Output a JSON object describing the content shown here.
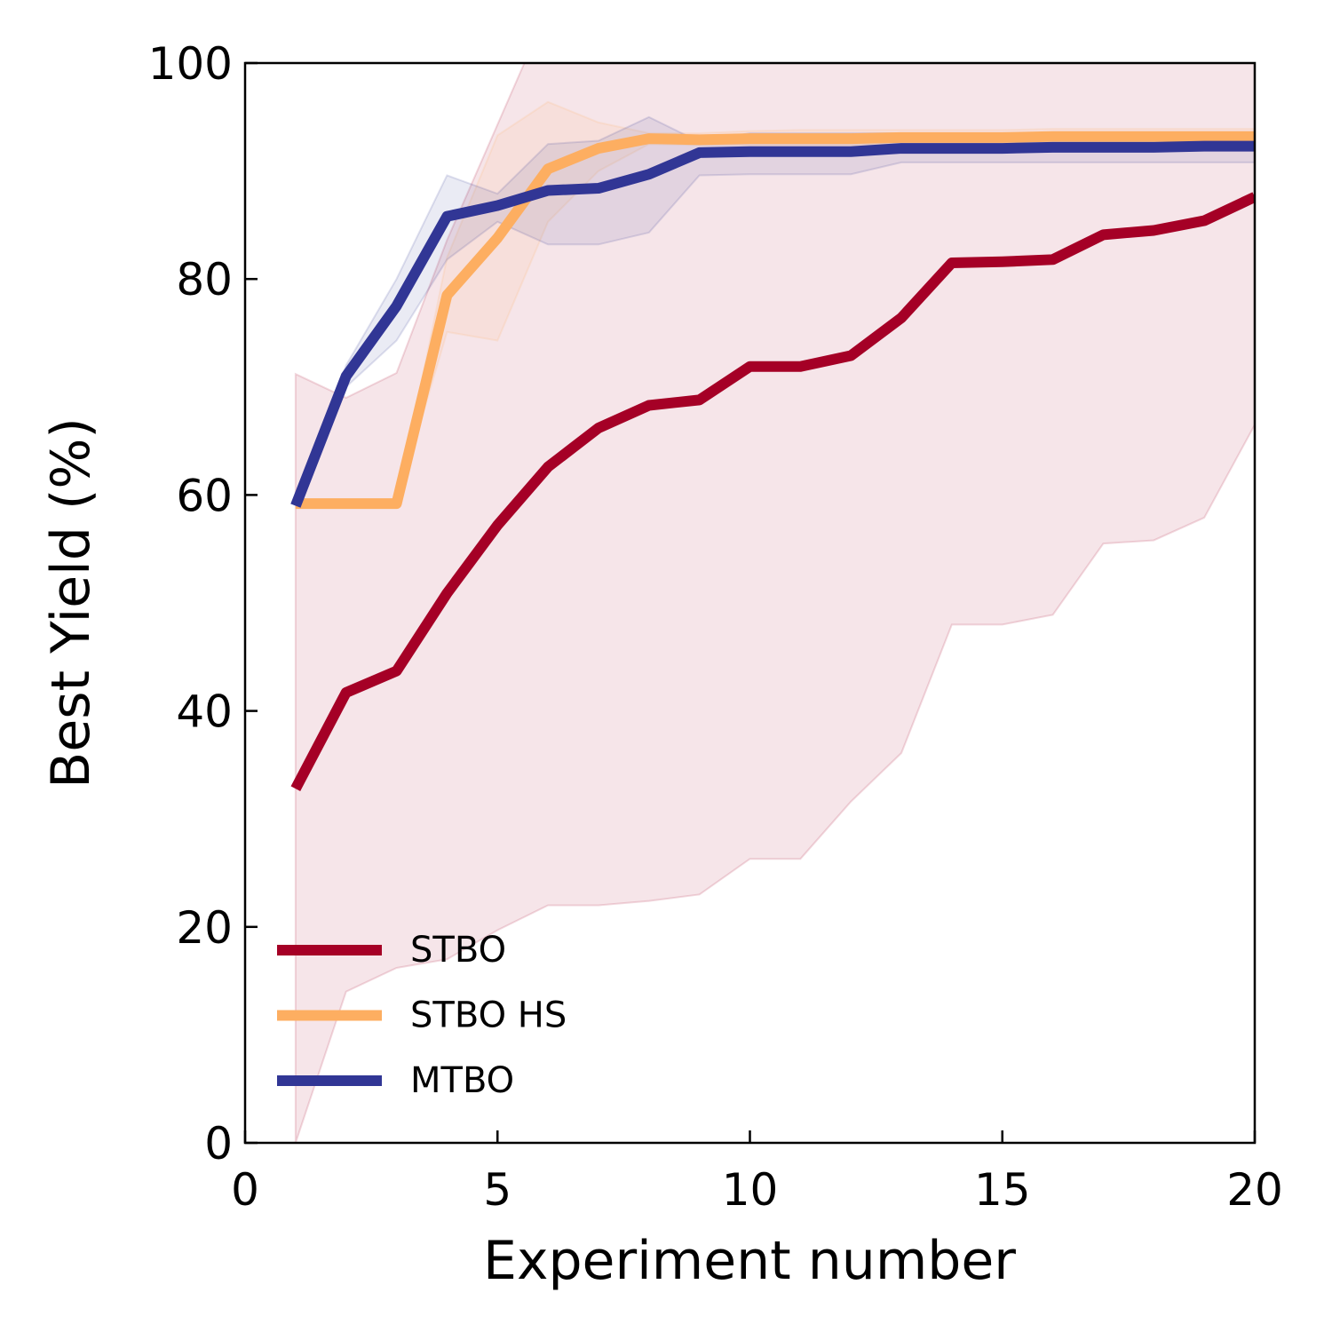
{
  "chart_data": {
    "type": "line",
    "xlabel": "Experiment number",
    "ylabel": "Best Yield (%)",
    "xlim": [
      0,
      20
    ],
    "ylim": [
      0,
      100
    ],
    "xticks": [
      0,
      5,
      10,
      15,
      20
    ],
    "yticks": [
      0,
      20,
      40,
      60,
      80,
      100
    ],
    "legend": "lower left",
    "x": [
      1,
      2,
      3,
      4,
      5,
      6,
      7,
      8,
      9,
      10,
      11,
      12,
      13,
      14,
      15,
      16,
      17,
      18,
      19,
      20
    ],
    "series": [
      {
        "name": "STBO",
        "color": "#a50026",
        "values": [
          32.8,
          41.7,
          43.7,
          50.9,
          57.2,
          62.6,
          66.2,
          68.3,
          68.8,
          71.9,
          71.9,
          72.9,
          76.4,
          81.5,
          81.6,
          81.8,
          84.1,
          84.5,
          85.4,
          87.6
        ],
        "upper": [
          71.2,
          69,
          71.3,
          83.6,
          94.3,
          105,
          110,
          110,
          110,
          110,
          110,
          110,
          110,
          110,
          110,
          110,
          110,
          110,
          110,
          110
        ],
        "lower": [
          0,
          14,
          16.2,
          17,
          19.7,
          22,
          22,
          22.4,
          23,
          26.3,
          26.3,
          31.6,
          36.1,
          48,
          48,
          48.9,
          55.5,
          55.8,
          57.9,
          66.5
        ]
      },
      {
        "name": "STBO HS",
        "color": "#fdae61",
        "values": [
          59.2,
          59.2,
          59.2,
          78.5,
          83.8,
          90.2,
          92.1,
          93,
          92.9,
          93,
          93,
          93,
          93.1,
          93.1,
          93.1,
          93.2,
          93.2,
          93.2,
          93.2,
          93.2
        ],
        "upper": [
          59.2,
          59.2,
          59.2,
          82,
          93.3,
          96.4,
          94.5,
          93.5,
          93.5,
          93.7,
          93.8,
          93.8,
          93.8,
          93.8,
          93.8,
          93.9,
          93.9,
          93.9,
          93.9,
          93.9
        ],
        "lower": [
          59.2,
          59.2,
          59.2,
          75.1,
          74.3,
          85.3,
          90,
          92.5,
          92.4,
          92.4,
          92.4,
          92.4,
          92.5,
          92.5,
          92.5,
          92.5,
          92.5,
          92.5,
          92.5,
          92.5
        ]
      },
      {
        "name": "MTBO",
        "color": "#313695",
        "values": [
          59,
          71,
          77.5,
          85.8,
          86.8,
          88.2,
          88.4,
          89.7,
          91.7,
          91.8,
          91.8,
          91.8,
          92.1,
          92.1,
          92.1,
          92.2,
          92.2,
          92.2,
          92.3,
          92.3
        ],
        "upper": [
          59,
          72,
          80,
          89.6,
          87.9,
          92.5,
          92.8,
          95,
          92.7,
          93.5,
          93.5,
          93.5,
          93.5,
          93.5,
          93.5,
          93.5,
          93.5,
          93.5,
          93.5,
          93.5
        ],
        "lower": [
          59,
          70,
          74.3,
          81.8,
          85.3,
          83.2,
          83.2,
          84.3,
          89.6,
          89.7,
          89.7,
          89.7,
          90.8,
          90.8,
          90.8,
          90.8,
          90.8,
          90.8,
          90.8,
          90.8
        ]
      }
    ]
  }
}
